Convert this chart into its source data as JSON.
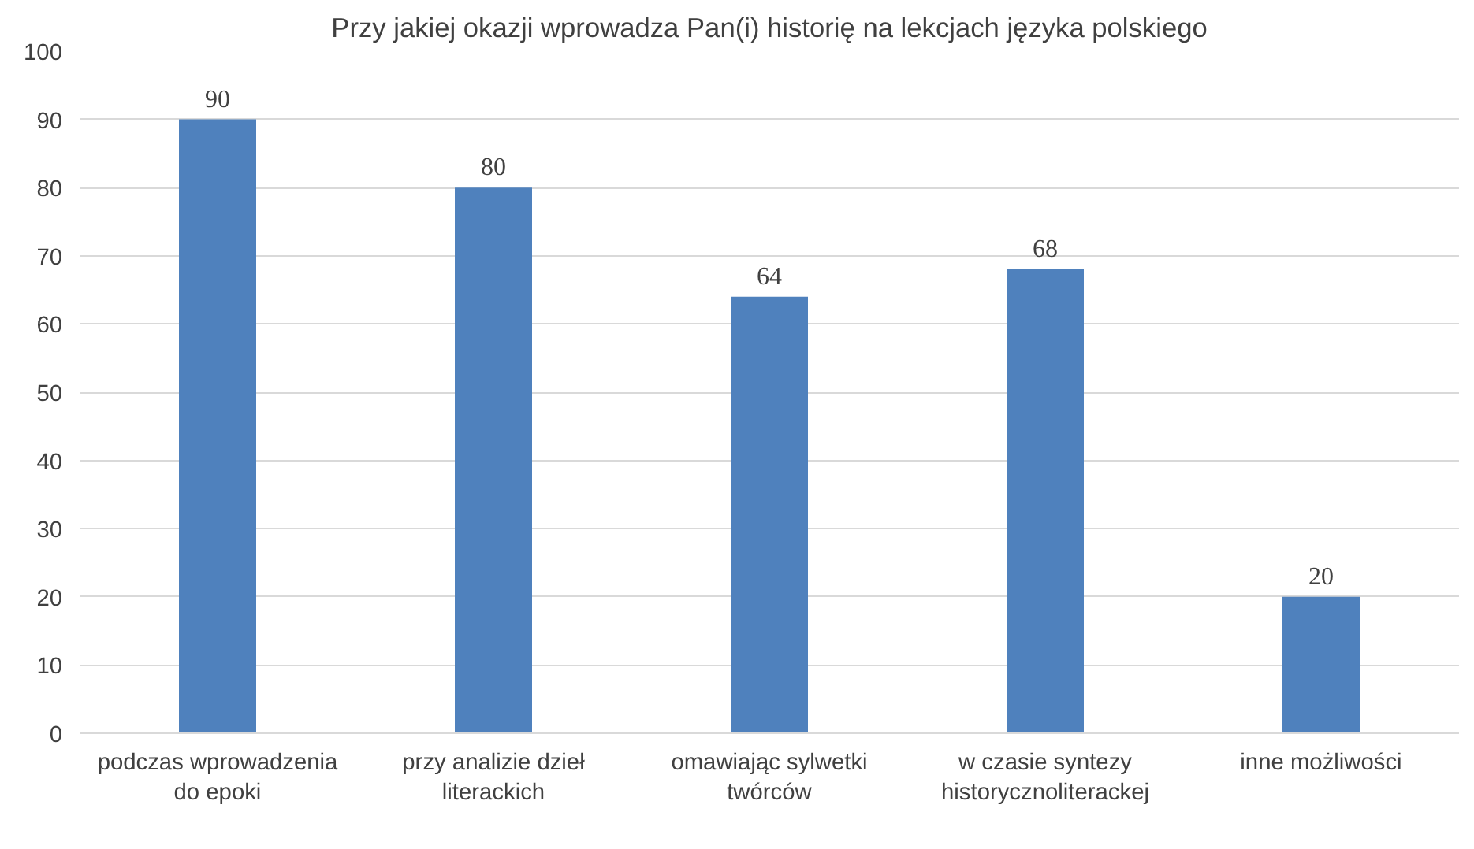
{
  "chart_data": {
    "type": "bar",
    "title": "Przy jakiej okazji wprowadza Pan(i) historię na lekcjach języka polskiego",
    "categories": [
      "podczas wprowadzenia do epoki",
      "przy analizie dzieł literackich",
      "omawiając sylwetki twórców",
      "w czasie syntezy historycznoliterackej",
      "inne możliwości"
    ],
    "values": [
      90,
      80,
      64,
      68,
      20
    ],
    "color": "#4f81bd",
    "ylim": [
      0,
      100
    ],
    "yticks": [
      0,
      10,
      20,
      30,
      40,
      50,
      60,
      70,
      80,
      90,
      100
    ],
    "grid": "y",
    "data_labels": true
  }
}
